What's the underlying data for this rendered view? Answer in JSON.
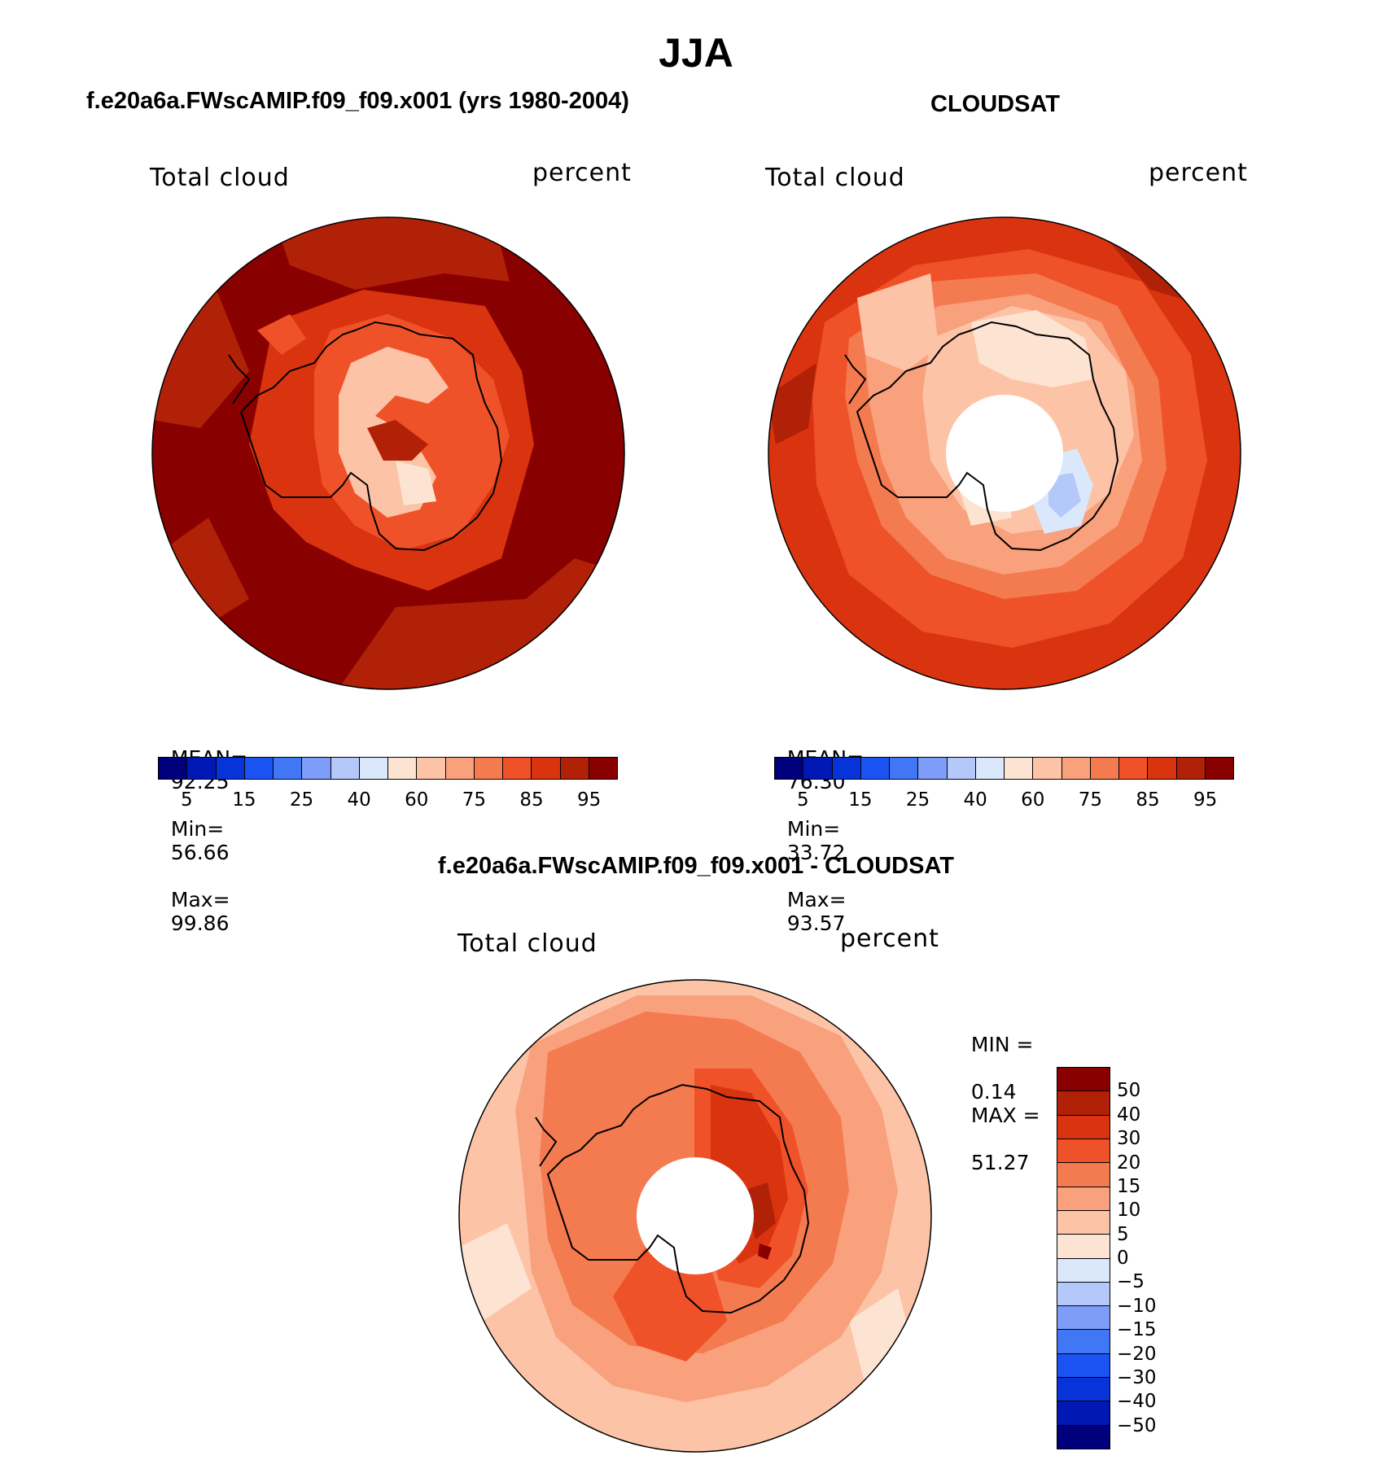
{
  "title": "JJA",
  "panel_left": {
    "title": "f.e20a6a.FWscAMIP.f09_f09.x001 (yrs 1980-2004)",
    "var_label": "Total cloud",
    "units": "percent",
    "stats": {
      "mean_label": "MEAN=",
      "mean": "92.25",
      "min_label": "Min=",
      "min": "56.66",
      "max_label": "Max=",
      "max": "99.86"
    }
  },
  "panel_right": {
    "title": "CLOUDSAT",
    "var_label": "Total cloud",
    "units": "percent",
    "stats": {
      "mean_label": "MEAN=",
      "mean": "76.30",
      "min_label": "Min=",
      "min": "33.72",
      "max_label": "Max=",
      "max": "93.57"
    }
  },
  "panel_diff": {
    "title": "f.e20a6a.FWscAMIP.f09_f09.x001 - CLOUDSAT",
    "var_label": "Total cloud",
    "units": "percent",
    "stats": {
      "min_label": "MIN =",
      "min": "0.14",
      "max_label": "MAX =",
      "max": "51.27"
    }
  },
  "colorbar_main": {
    "ticks": [
      "5",
      "15",
      "25",
      "40",
      "60",
      "75",
      "85",
      "95"
    ],
    "colors": [
      "#00007d",
      "#0018b4",
      "#0634d8",
      "#1b52f2",
      "#4176f5",
      "#7d9df8",
      "#b4c8f9",
      "#dbe8fb",
      "#fde4d2",
      "#fcc3a7",
      "#f9a07c",
      "#f47a50",
      "#ef5229",
      "#d9340f",
      "#b02108",
      "#890000"
    ]
  },
  "colorbar_diff": {
    "ticks": [
      "50",
      "40",
      "30",
      "20",
      "15",
      "10",
      "5",
      "0",
      "−5",
      "−10",
      "−15",
      "−20",
      "−30",
      "−40",
      "−50"
    ],
    "colors": [
      "#890000",
      "#b02108",
      "#d9340f",
      "#ef5229",
      "#f47a50",
      "#f9a07c",
      "#fcc3a7",
      "#fde4d2",
      "#dbe8fb",
      "#b4c8f9",
      "#7d9df8",
      "#4176f5",
      "#1b52f2",
      "#0634d8",
      "#0018b4",
      "#00007d"
    ]
  }
}
